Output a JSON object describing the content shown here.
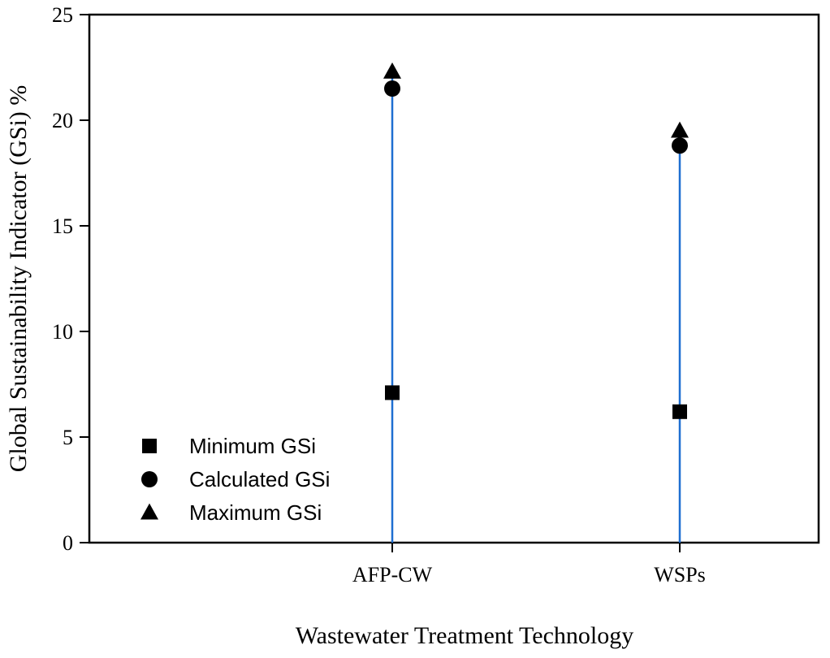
{
  "chart_data": {
    "type": "scatter",
    "title": "",
    "xlabel": "Wastewater Treatment Technology",
    "ylabel": "Global Sustainability Indicator (GSi) %",
    "categories": [
      "AFP-CW",
      "WSPs"
    ],
    "ylim": [
      0,
      25
    ],
    "yticks": [
      0,
      5,
      10,
      15,
      20,
      25
    ],
    "grid": false,
    "legend_position": "bottom-left",
    "series": [
      {
        "name": "Minimum GSi",
        "marker": "square",
        "values": [
          7.1,
          6.2
        ]
      },
      {
        "name": "Calculated GSi",
        "marker": "circle",
        "values": [
          21.5,
          18.8
        ]
      },
      {
        "name": "Maximum GSi",
        "marker": "triangle",
        "values": [
          22.3,
          19.5
        ]
      }
    ],
    "range_lines": {
      "from": 0,
      "to_series": "Maximum GSi",
      "color": "#1f6fd1"
    },
    "marker_color": "#000000"
  }
}
